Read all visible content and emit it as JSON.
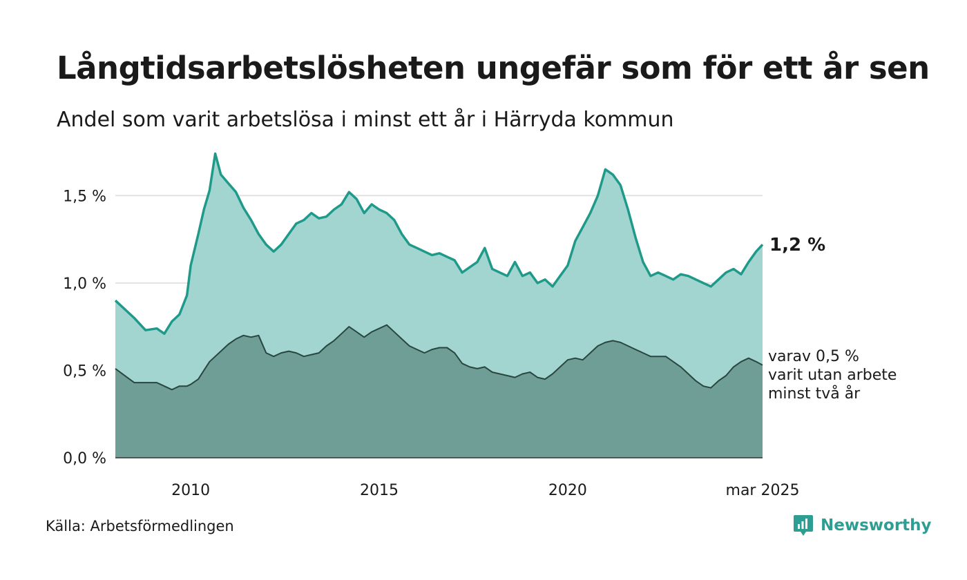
{
  "header": {
    "title": "Långtidsarbetslösheten ungefär som för ett år sen",
    "subtitle": "Andel som varit arbetslösa i minst ett år i Härryda kommun"
  },
  "footer": {
    "source": "Källa: Arbetsförmedlingen",
    "brand": "Newsworthy"
  },
  "colors": {
    "total_line": "#1f9a8a",
    "total_fill": "#a2d5cf",
    "sub_line": "#28463f",
    "sub_fill": "#6f9e96",
    "grid": "#e2e2e2",
    "brand": "#2f9e92"
  },
  "chart_data": {
    "type": "area",
    "ylim": [
      0,
      1.75
    ],
    "y_ticks": [
      {
        "value": 0.0,
        "label": "0,0 %"
      },
      {
        "value": 0.5,
        "label": "0,5 %"
      },
      {
        "value": 1.0,
        "label": "1,0 %"
      },
      {
        "value": 1.5,
        "label": "1,5 %"
      }
    ],
    "x_ticks": [
      {
        "value": 2010,
        "label": "2010"
      },
      {
        "value": 2015,
        "label": "2015"
      },
      {
        "value": 2020,
        "label": "2020"
      },
      {
        "value": 2025.17,
        "label": "mar 2025"
      }
    ],
    "x_range": [
      2008.0,
      2025.17
    ],
    "grid": true,
    "end_label": "1,2 %",
    "sub_label": [
      "varav 0,5 %",
      "varit utan arbete",
      "minst två år"
    ],
    "series": [
      {
        "x": [
          2008.0,
          2008.5,
          2008.8,
          2009.1,
          2009.3,
          2009.5,
          2009.7,
          2009.9,
          2010.0,
          2010.2,
          2010.35,
          2010.5,
          2010.65,
          2010.8,
          2011.0,
          2011.2,
          2011.4,
          2011.6,
          2011.8,
          2012.0,
          2012.2,
          2012.4,
          2012.6,
          2012.8,
          2013.0,
          2013.2,
          2013.4,
          2013.6,
          2013.8,
          2014.0,
          2014.2,
          2014.4,
          2014.6,
          2014.8,
          2015.0,
          2015.2,
          2015.4,
          2015.6,
          2015.8,
          2016.0,
          2016.2,
          2016.4,
          2016.6,
          2016.8,
          2017.0,
          2017.2,
          2017.4,
          2017.6,
          2017.8,
          2018.0,
          2018.2,
          2018.4,
          2018.6,
          2018.8,
          2019.0,
          2019.2,
          2019.4,
          2019.6,
          2019.8,
          2020.0,
          2020.2,
          2020.4,
          2020.6,
          2020.8,
          2021.0,
          2021.2,
          2021.4,
          2021.6,
          2021.8,
          2022.0,
          2022.2,
          2022.4,
          2022.6,
          2022.8,
          2023.0,
          2023.2,
          2023.4,
          2023.6,
          2023.8,
          2024.0,
          2024.2,
          2024.4,
          2024.6,
          2024.8,
          2025.0,
          2025.17
        ],
        "values": [
          0.9,
          0.8,
          0.73,
          0.74,
          0.71,
          0.78,
          0.82,
          0.93,
          1.1,
          1.28,
          1.42,
          1.53,
          1.74,
          1.62,
          1.57,
          1.52,
          1.43,
          1.36,
          1.28,
          1.22,
          1.18,
          1.22,
          1.28,
          1.34,
          1.36,
          1.4,
          1.37,
          1.38,
          1.42,
          1.45,
          1.52,
          1.48,
          1.4,
          1.45,
          1.42,
          1.4,
          1.36,
          1.28,
          1.22,
          1.2,
          1.18,
          1.16,
          1.17,
          1.15,
          1.13,
          1.06,
          1.09,
          1.12,
          1.2,
          1.08,
          1.06,
          1.04,
          1.12,
          1.04,
          1.06,
          1.0,
          1.02,
          0.98,
          1.04,
          1.1,
          1.24,
          1.32,
          1.4,
          1.5,
          1.65,
          1.62,
          1.56,
          1.42,
          1.26,
          1.12,
          1.04,
          1.06,
          1.04,
          1.02,
          1.05,
          1.04,
          1.02,
          1.0,
          0.98,
          1.02,
          1.06,
          1.08,
          1.05,
          1.12,
          1.18,
          1.22
        ]
      },
      {
        "x": [
          2008.0,
          2008.5,
          2008.8,
          2009.1,
          2009.3,
          2009.5,
          2009.7,
          2009.9,
          2010.0,
          2010.2,
          2010.35,
          2010.5,
          2010.65,
          2010.8,
          2011.0,
          2011.2,
          2011.4,
          2011.6,
          2011.8,
          2012.0,
          2012.2,
          2012.4,
          2012.6,
          2012.8,
          2013.0,
          2013.2,
          2013.4,
          2013.6,
          2013.8,
          2014.0,
          2014.2,
          2014.4,
          2014.6,
          2014.8,
          2015.0,
          2015.2,
          2015.4,
          2015.6,
          2015.8,
          2016.0,
          2016.2,
          2016.4,
          2016.6,
          2016.8,
          2017.0,
          2017.2,
          2017.4,
          2017.6,
          2017.8,
          2018.0,
          2018.2,
          2018.4,
          2018.6,
          2018.8,
          2019.0,
          2019.2,
          2019.4,
          2019.6,
          2019.8,
          2020.0,
          2020.2,
          2020.4,
          2020.6,
          2020.8,
          2021.0,
          2021.2,
          2021.4,
          2021.6,
          2021.8,
          2022.0,
          2022.2,
          2022.4,
          2022.6,
          2022.8,
          2023.0,
          2023.2,
          2023.4,
          2023.6,
          2023.8,
          2024.0,
          2024.2,
          2024.4,
          2024.6,
          2024.8,
          2025.0,
          2025.17
        ],
        "values": [
          0.51,
          0.43,
          0.43,
          0.43,
          0.41,
          0.39,
          0.41,
          0.41,
          0.42,
          0.45,
          0.5,
          0.55,
          0.58,
          0.61,
          0.65,
          0.68,
          0.7,
          0.69,
          0.7,
          0.6,
          0.58,
          0.6,
          0.61,
          0.6,
          0.58,
          0.59,
          0.6,
          0.64,
          0.67,
          0.71,
          0.75,
          0.72,
          0.69,
          0.72,
          0.74,
          0.76,
          0.72,
          0.68,
          0.64,
          0.62,
          0.6,
          0.62,
          0.63,
          0.63,
          0.6,
          0.54,
          0.52,
          0.51,
          0.52,
          0.49,
          0.48,
          0.47,
          0.46,
          0.48,
          0.49,
          0.46,
          0.45,
          0.48,
          0.52,
          0.56,
          0.57,
          0.56,
          0.6,
          0.64,
          0.66,
          0.67,
          0.66,
          0.64,
          0.62,
          0.6,
          0.58,
          0.58,
          0.58,
          0.55,
          0.52,
          0.48,
          0.44,
          0.41,
          0.4,
          0.44,
          0.47,
          0.52,
          0.55,
          0.57,
          0.55,
          0.53
        ]
      }
    ]
  }
}
